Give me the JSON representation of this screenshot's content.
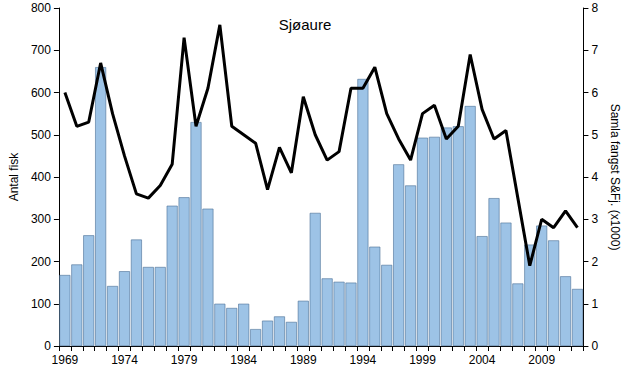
{
  "chart_data": {
    "type": "bar",
    "title": "Sjøaure",
    "categories": [
      "1969",
      null,
      null,
      null,
      null,
      "1974",
      null,
      null,
      null,
      null,
      "1979",
      null,
      null,
      null,
      null,
      "1984",
      null,
      null,
      null,
      null,
      "1989",
      null,
      null,
      null,
      null,
      "1994",
      null,
      null,
      null,
      null,
      "1999",
      null,
      null,
      null,
      null,
      "2004",
      null,
      null,
      null,
      null,
      "2009",
      null,
      null,
      null
    ],
    "series": [
      {
        "name": "Antal fisk",
        "type": "bar",
        "color": "#9dc3e6",
        "values": [
          168,
          193,
          262,
          660,
          142,
          177,
          252,
          187,
          187,
          332,
          352,
          530,
          325,
          100,
          90,
          100,
          40,
          60,
          70,
          57,
          107,
          315,
          160,
          152,
          150,
          632,
          235,
          192,
          430,
          380,
          493,
          495,
          517,
          520,
          568,
          260,
          350,
          292,
          148,
          240,
          285,
          250,
          165,
          135
        ]
      },
      {
        "name": "Samla fangst S&Fj. (x1000)",
        "type": "line",
        "axis": "y2",
        "color": "#000000",
        "marker": "none",
        "values": [
          6.0,
          5.2,
          5.3,
          6.7,
          5.5,
          4.5,
          3.6,
          3.5,
          3.8,
          4.3,
          7.3,
          5.2,
          6.1,
          7.6,
          5.2,
          5.0,
          4.8,
          3.7,
          4.7,
          4.1,
          5.9,
          5.0,
          4.4,
          4.6,
          6.1,
          6.1,
          6.6,
          5.5,
          4.9,
          4.4,
          5.5,
          5.7,
          4.9,
          5.2,
          6.9,
          5.6,
          4.9,
          5.1,
          3.5,
          1.9,
          3.0,
          2.8,
          3.2,
          2.8
        ]
      }
    ],
    "ylabel": "Antal fisk",
    "y2label": "Samla fangst S&Fj. (x1000)",
    "ylim": [
      0,
      800
    ],
    "yticks": [
      0,
      100,
      200,
      300,
      400,
      500,
      600,
      700,
      800
    ],
    "y2lim": [
      0,
      8
    ],
    "y2ticks": [
      0,
      1,
      2,
      3,
      4,
      5,
      6,
      7,
      8
    ],
    "grid": false
  }
}
